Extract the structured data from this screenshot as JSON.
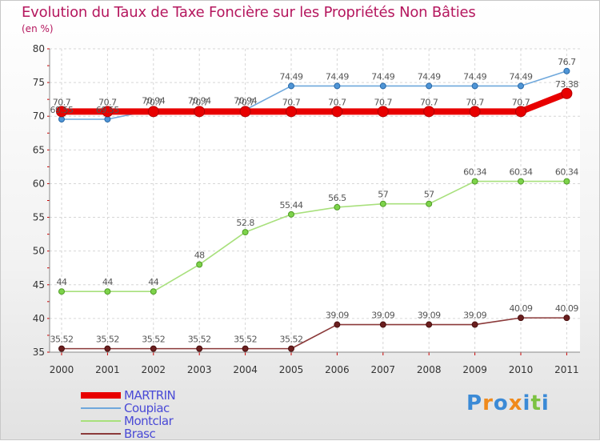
{
  "chart_data": {
    "type": "line",
    "title": "Evolution du Taux de Taxe Foncière sur les Propriétés Non Bâties",
    "ylabel": "(en %)",
    "xlabel": "",
    "ylim": [
      35,
      80
    ],
    "yticks": [
      35,
      40,
      45,
      50,
      55,
      60,
      65,
      70,
      75,
      80
    ],
    "categories": [
      "2000",
      "2001",
      "2002",
      "2003",
      "2004",
      "2005",
      "2006",
      "2007",
      "2008",
      "2009",
      "2010",
      "2011"
    ],
    "series": [
      {
        "name": "MARTRIN",
        "color": "#e80000",
        "values": [
          70.7,
          70.7,
          70.7,
          70.7,
          70.7,
          70.7,
          70.7,
          70.7,
          70.7,
          70.7,
          70.7,
          73.38
        ],
        "labels": [
          "70.7",
          "70.7",
          "70.7",
          "70.7",
          "70.7",
          "70.7",
          "70.7",
          "70.7",
          "70.7",
          "70.7",
          "70.7",
          "73.38"
        ]
      },
      {
        "name": "Coupiac",
        "color": "#5b9bd5",
        "values": [
          69.55,
          69.55,
          70.94,
          70.94,
          70.94,
          74.49,
          74.49,
          74.49,
          74.49,
          74.49,
          74.49,
          76.7
        ],
        "labels": [
          "69.55",
          "69.55",
          "70.94",
          "70.94",
          "70.94",
          "74.49",
          "74.49",
          "74.49",
          "74.49",
          "74.49",
          "74.49",
          "76.7"
        ]
      },
      {
        "name": "Montclar",
        "color": "#99dd66",
        "values": [
          44,
          44,
          44,
          48,
          52.8,
          55.44,
          56.5,
          57,
          57,
          60.34,
          60.34,
          60.34
        ],
        "labels": [
          "44",
          "44",
          "44",
          "48",
          "52.8",
          "55.44",
          "56.5",
          "57",
          "57",
          "60.34",
          "60.34",
          "60.34"
        ]
      },
      {
        "name": "Brasc",
        "color": "#8b3a3a",
        "values": [
          35.52,
          35.52,
          35.52,
          35.52,
          35.52,
          35.52,
          39.09,
          39.09,
          39.09,
          39.09,
          40.09,
          40.09
        ],
        "labels": [
          "35.52",
          "35.52",
          "35.52",
          "35.52",
          "35.52",
          "35.52",
          "39.09",
          "39.09",
          "39.09",
          "39.09",
          "40.09",
          "40.09"
        ]
      }
    ],
    "legend_position": "bottom-left"
  },
  "branding": {
    "logo_letters": [
      "P",
      "r",
      "o",
      "x",
      "i",
      "t",
      "i"
    ],
    "logo_colors": [
      "#3b8ad6",
      "#f08a1c",
      "#3b8ad6",
      "#f08a1c",
      "#3b8ad6",
      "#7cc242",
      "#3b8ad6"
    ]
  }
}
